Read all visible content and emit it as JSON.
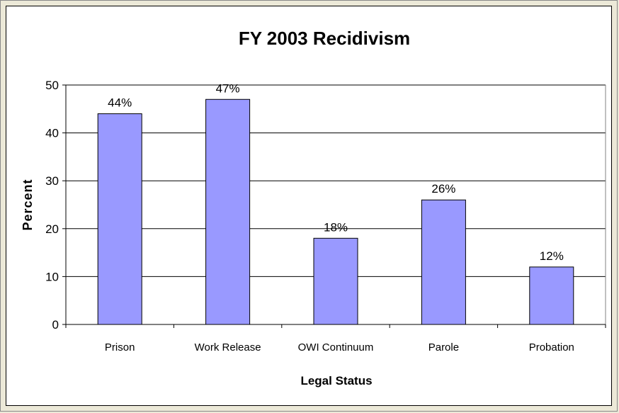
{
  "chart_data": {
    "type": "bar",
    "title": "FY 2003 Recidivism",
    "xlabel": "Legal Status",
    "ylabel": "Percent",
    "categories": [
      "Prison",
      "Work Release",
      "OWI Continuum",
      "Parole",
      "Probation"
    ],
    "values": [
      44,
      47,
      18,
      26,
      12
    ],
    "data_labels": [
      "44%",
      "47%",
      "18%",
      "26%",
      "12%"
    ],
    "ylim": [
      0,
      50
    ],
    "yticks": [
      0,
      10,
      20,
      30,
      40,
      50
    ],
    "grid": true,
    "legend": "none",
    "bar_color": "#9999ff",
    "bar_border_color": "#000000"
  }
}
